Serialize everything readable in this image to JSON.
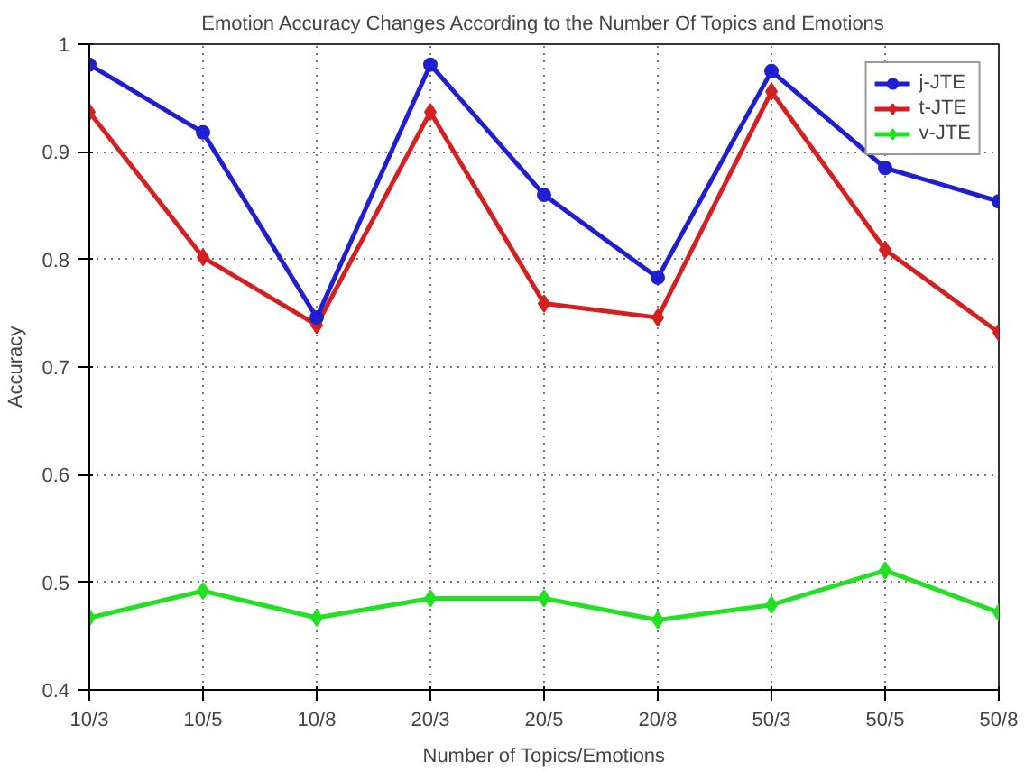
{
  "chart_data": {
    "type": "line",
    "title": "Emotion Accuracy Changes According to the Number Of Topics and Emotions",
    "xlabel": "Number of Topics/Emotions",
    "ylabel": "Accuracy",
    "categories": [
      "10/3",
      "10/5",
      "10/8",
      "20/3",
      "20/5",
      "20/8",
      "50/3",
      "50/5",
      "50/8"
    ],
    "series": [
      {
        "name": "j-JTE",
        "color": "#1f1fd0",
        "marker": "circle",
        "values": [
          0.981,
          0.918,
          0.746,
          0.981,
          0.86,
          0.783,
          0.975,
          0.885,
          0.854
        ]
      },
      {
        "name": "t-JTE",
        "color": "#d42020",
        "marker": "diamond",
        "values": [
          0.937,
          0.802,
          0.739,
          0.937,
          0.759,
          0.746,
          0.956,
          0.809,
          0.732
        ]
      },
      {
        "name": "v-JTE",
        "color": "#22e022",
        "marker": "diamond",
        "values": [
          0.467,
          0.492,
          0.467,
          0.485,
          0.485,
          0.465,
          0.479,
          0.511,
          0.472
        ]
      }
    ],
    "ylim": [
      0.4,
      1
    ],
    "yticks": [
      0.4,
      0.5,
      0.6,
      0.7,
      0.8,
      0.9,
      {
        "value": 1,
        "label": "1"
      }
    ],
    "grid": true,
    "legend": "top right",
    "line_style": "solid"
  }
}
